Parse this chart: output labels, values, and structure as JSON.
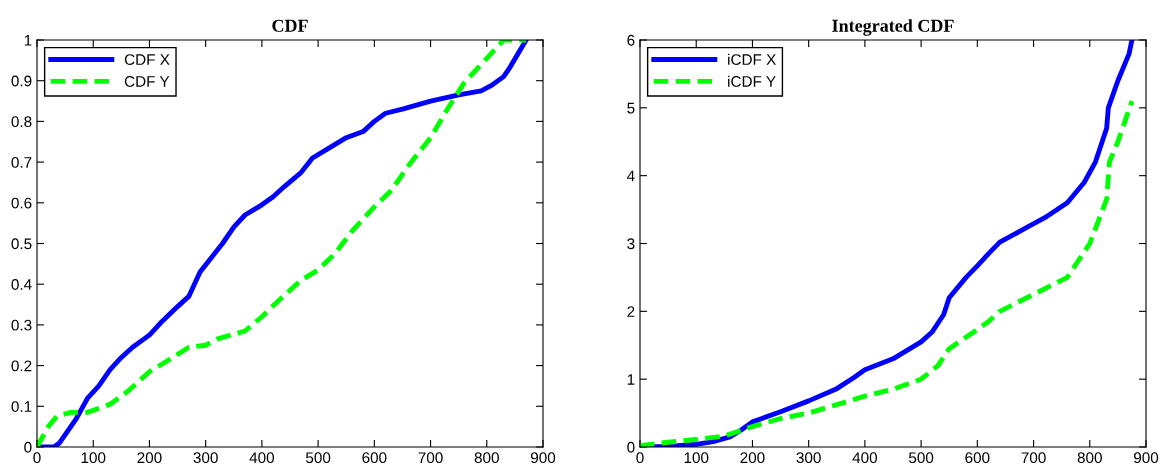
{
  "chart_data": [
    {
      "type": "line",
      "title": "CDF",
      "xlim": [
        0,
        900
      ],
      "ylim": [
        0,
        1
      ],
      "xticks": [
        0,
        100,
        200,
        300,
        400,
        500,
        600,
        700,
        800,
        900
      ],
      "yticks": [
        0,
        0.1,
        0.2,
        0.3,
        0.4,
        0.5,
        0.6,
        0.7,
        0.8,
        0.9,
        1
      ],
      "legend": "top left",
      "grid": false,
      "series": [
        {
          "name": "CDF X",
          "color": "#0000ff",
          "line_style": "solid",
          "x": [
            0,
            30,
            40,
            70,
            90,
            110,
            130,
            150,
            170,
            190,
            200,
            220,
            250,
            270,
            290,
            310,
            330,
            350,
            370,
            400,
            420,
            440,
            470,
            490,
            520,
            550,
            580,
            600,
            620,
            650,
            700,
            750,
            790,
            810,
            830,
            840,
            870
          ],
          "values": [
            0,
            0,
            0.01,
            0.07,
            0.12,
            0.15,
            0.19,
            0.22,
            0.245,
            0.265,
            0.275,
            0.305,
            0.345,
            0.37,
            0.43,
            0.465,
            0.5,
            0.54,
            0.57,
            0.595,
            0.615,
            0.64,
            0.675,
            0.71,
            0.735,
            0.76,
            0.775,
            0.8,
            0.82,
            0.83,
            0.85,
            0.865,
            0.875,
            0.89,
            0.91,
            0.93,
            1.0
          ]
        },
        {
          "name": "CDF Y",
          "color": "#00ff00",
          "line_style": "dashed",
          "x": [
            0,
            20,
            35,
            60,
            90,
            130,
            160,
            200,
            230,
            270,
            300,
            320,
            370,
            400,
            430,
            470,
            500,
            530,
            560,
            600,
            630,
            660,
            700,
            730,
            760,
            800,
            830,
            870
          ],
          "values": [
            0,
            0.05,
            0.075,
            0.085,
            0.085,
            0.105,
            0.135,
            0.185,
            0.21,
            0.245,
            0.25,
            0.265,
            0.285,
            0.32,
            0.36,
            0.41,
            0.435,
            0.475,
            0.53,
            0.59,
            0.63,
            0.69,
            0.76,
            0.83,
            0.895,
            0.955,
            1.0,
            1.0
          ]
        }
      ]
    },
    {
      "type": "line",
      "title": "Integrated CDF",
      "xlim": [
        0,
        900
      ],
      "ylim": [
        0,
        6
      ],
      "xticks": [
        0,
        100,
        200,
        300,
        400,
        500,
        600,
        700,
        800,
        900
      ],
      "yticks": [
        0,
        1,
        2,
        3,
        4,
        5,
        6
      ],
      "legend": "top left",
      "grid": false,
      "series": [
        {
          "name": "iCDF X",
          "color": "#0000ff",
          "line_style": "solid",
          "x": [
            0,
            50,
            100,
            130,
            160,
            180,
            200,
            250,
            300,
            350,
            380,
            400,
            450,
            500,
            520,
            540,
            550,
            580,
            600,
            620,
            640,
            680,
            720,
            760,
            790,
            810,
            830,
            833,
            850,
            870,
            875
          ],
          "values": [
            0,
            0.01,
            0.04,
            0.08,
            0.15,
            0.25,
            0.37,
            0.52,
            0.68,
            0.86,
            1.02,
            1.14,
            1.3,
            1.55,
            1.7,
            1.95,
            2.2,
            2.5,
            2.67,
            2.85,
            3.02,
            3.2,
            3.38,
            3.6,
            3.9,
            4.2,
            4.7,
            5.0,
            5.4,
            5.8,
            6.0
          ]
        },
        {
          "name": "iCDF Y",
          "color": "#00ff00",
          "line_style": "dashed",
          "x": [
            0,
            50,
            100,
            150,
            200,
            250,
            300,
            400,
            450,
            500,
            530,
            550,
            600,
            620,
            640,
            700,
            760,
            800,
            830,
            835,
            850,
            875
          ],
          "values": [
            0.02,
            0.07,
            0.11,
            0.16,
            0.3,
            0.42,
            0.5,
            0.75,
            0.85,
            1.0,
            1.2,
            1.45,
            1.73,
            1.85,
            2.0,
            2.25,
            2.5,
            3.0,
            3.65,
            4.2,
            4.5,
            5.1
          ]
        }
      ]
    }
  ]
}
